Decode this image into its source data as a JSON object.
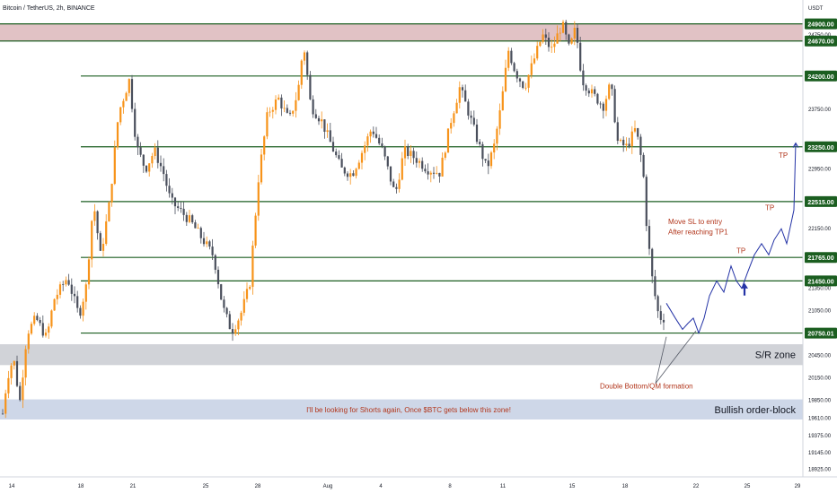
{
  "header": {
    "symbol_text": "Bitcoin / TetherUS, 2h, BINANCE",
    "currency": "USDT"
  },
  "colors": {
    "level_line": "#1b5e20",
    "label_bg": "#1b5e20",
    "bull": "#f7931a",
    "bear": "#4a4f5c",
    "projection": "#2433a6",
    "annotation": "#b2361c",
    "top_zone": "#dcb7bb",
    "sr_zone": "#c9cbd1",
    "orderblock_zone": "#c5d0e4"
  },
  "chart_data": {
    "type": "candlestick",
    "title": "Bitcoin / TetherUS, 2h, BINANCE",
    "ylim": [
      18820,
      25220
    ],
    "x_ticks": [
      "14",
      "18",
      "21",
      "25",
      "28",
      "Aug",
      "4",
      "8",
      "11",
      "15",
      "18",
      "22",
      "25",
      "29"
    ],
    "y_ticks": [
      "24900.00",
      "24750.00",
      "24670.00",
      "24200.00",
      "23750.00",
      "23250.00",
      "23250.00",
      "22950.00",
      "22515.00",
      "22150.00",
      "21765.00",
      "21450.00",
      "21350.00",
      "21050.00",
      "20750.01",
      "20450.00",
      "20150.00",
      "19850.00",
      "19610.00",
      "19375.00",
      "19145.00",
      "18925.00"
    ],
    "levels": [
      {
        "label": "24900.00",
        "value": 24900
      },
      {
        "label": "24670.00",
        "value": 24670
      },
      {
        "label": "24200.00",
        "value": 24200
      },
      {
        "label": "23250.00",
        "value": 23250
      },
      {
        "label": "22515.00",
        "value": 22515
      },
      {
        "label": "21765.00",
        "value": 21765
      },
      {
        "label": "21450.00",
        "value": 21450
      },
      {
        "label": "20750.01",
        "value": 20750.01
      }
    ],
    "zones": [
      {
        "name": "top-resistance-zone",
        "from": 24670,
        "to": 24900,
        "label": ""
      },
      {
        "name": "sr-zone",
        "from": 20320,
        "to": 20600,
        "label": "S/R zone"
      },
      {
        "name": "bullish-orderblock",
        "from": 19590,
        "to": 19860,
        "label": "Bullish order-block"
      }
    ],
    "price_path": [
      [
        0,
        19380
      ],
      [
        8,
        20150
      ],
      [
        15,
        20420
      ],
      [
        22,
        19820
      ],
      [
        30,
        20750
      ],
      [
        40,
        20950
      ],
      [
        52,
        20680
      ],
      [
        60,
        21200
      ],
      [
        75,
        21500
      ],
      [
        88,
        20980
      ],
      [
        96,
        21380
      ],
      [
        104,
        22520
      ],
      [
        112,
        21780
      ],
      [
        122,
        22500
      ],
      [
        132,
        23700
      ],
      [
        144,
        24150
      ],
      [
        152,
        23250
      ],
      [
        162,
        22950
      ],
      [
        172,
        23200
      ],
      [
        182,
        22900
      ],
      [
        190,
        22520
      ],
      [
        200,
        22400
      ],
      [
        212,
        22250
      ],
      [
        226,
        22000
      ],
      [
        238,
        21780
      ],
      [
        248,
        21100
      ],
      [
        258,
        20770
      ],
      [
        268,
        21000
      ],
      [
        278,
        21400
      ],
      [
        288,
        22850
      ],
      [
        298,
        23700
      ],
      [
        310,
        23900
      ],
      [
        322,
        23600
      ],
      [
        332,
        24000
      ],
      [
        338,
        24650
      ],
      [
        346,
        23800
      ],
      [
        358,
        23600
      ],
      [
        368,
        23300
      ],
      [
        380,
        22950
      ],
      [
        392,
        22880
      ],
      [
        402,
        23150
      ],
      [
        414,
        23500
      ],
      [
        426,
        23200
      ],
      [
        440,
        22600
      ],
      [
        450,
        23200
      ],
      [
        462,
        23100
      ],
      [
        476,
        22950
      ],
      [
        490,
        22900
      ],
      [
        502,
        23600
      ],
      [
        512,
        24050
      ],
      [
        522,
        23700
      ],
      [
        534,
        23250
      ],
      [
        542,
        22950
      ],
      [
        550,
        23250
      ],
      [
        558,
        23800
      ],
      [
        566,
        24550
      ],
      [
        574,
        24250
      ],
      [
        584,
        24050
      ],
      [
        594,
        24400
      ],
      [
        604,
        24750
      ],
      [
        614,
        24550
      ],
      [
        626,
        24900
      ],
      [
        634,
        24550
      ],
      [
        641,
        24850
      ],
      [
        648,
        24150
      ],
      [
        660,
        23950
      ],
      [
        672,
        23800
      ],
      [
        680,
        24100
      ],
      [
        688,
        23300
      ],
      [
        698,
        23250
      ],
      [
        708,
        23500
      ],
      [
        716,
        22950
      ],
      [
        720,
        22200
      ],
      [
        726,
        21500
      ],
      [
        732,
        21050
      ],
      [
        738,
        20900
      ],
      [
        742,
        21100
      ]
    ],
    "projection_path": [
      [
        742,
        21150
      ],
      [
        752,
        20950
      ],
      [
        760,
        20800
      ],
      [
        766,
        20880
      ],
      [
        772,
        20950
      ],
      [
        778,
        20750
      ],
      [
        784,
        20950
      ],
      [
        790,
        21250
      ],
      [
        798,
        21450
      ],
      [
        806,
        21300
      ],
      [
        814,
        21650
      ],
      [
        820,
        21450
      ],
      [
        826,
        21350
      ],
      [
        832,
        21550
      ],
      [
        840,
        21800
      ],
      [
        848,
        21950
      ],
      [
        856,
        21800
      ],
      [
        862,
        22000
      ],
      [
        870,
        22150
      ],
      [
        876,
        21950
      ],
      [
        884,
        22400
      ],
      [
        886,
        23300
      ]
    ],
    "projection_name": "",
    "arrow_up_at": [
      829,
      21350
    ],
    "annotations": [
      {
        "text": "Move SL to entry",
        "x": 744,
        "y": 22215
      },
      {
        "text": "After reaching TP1",
        "x": 744,
        "y": 22075
      },
      {
        "text": "TP",
        "x": 820,
        "y": 21820
      },
      {
        "text": "TP",
        "x": 852,
        "y": 22400
      },
      {
        "text": "TP",
        "x": 867,
        "y": 23100
      },
      {
        "text": "Double Bottom/QM formation",
        "x": 668,
        "y": 20005
      }
    ],
    "bottom_note": "I'll be looking for Shorts again, Once $BTC gets below this zone!",
    "pointer_lines": [
      {
        "from": [
          730,
          20075
        ],
        "to": [
          742,
          20700
        ]
      },
      {
        "from": [
          730,
          20075
        ],
        "to": [
          775,
          20780
        ]
      }
    ]
  }
}
